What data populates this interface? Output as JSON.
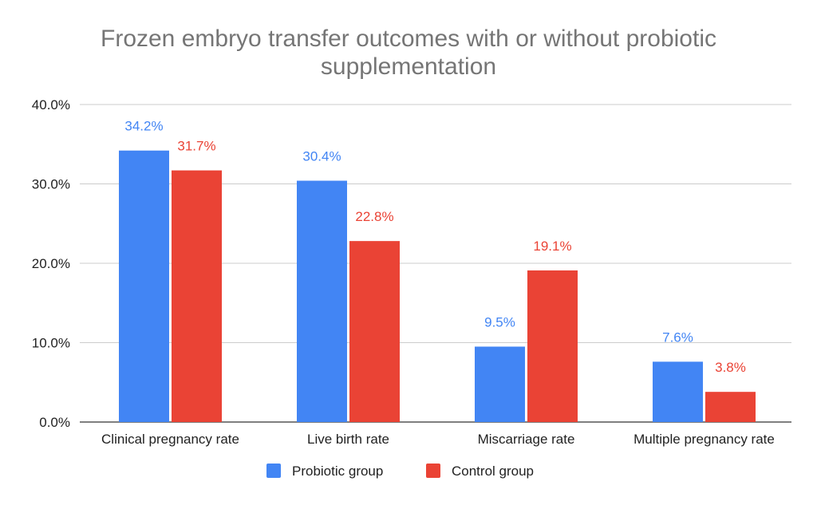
{
  "chart_data": {
    "type": "bar",
    "title_lines": [
      "Frozen embryo transfer outcomes with or without probiotic",
      "supplementation"
    ],
    "categories": [
      "Clinical pregnancy rate",
      "Live birth rate",
      "Miscarriage rate",
      "Multiple pregnancy rate"
    ],
    "series": [
      {
        "name": "Probiotic group",
        "color": "#4285f4",
        "values": [
          34.2,
          30.4,
          9.5,
          7.6
        ],
        "labels": [
          "34.2%",
          "30.4%",
          "9.5%",
          "7.6%"
        ]
      },
      {
        "name": "Control group",
        "color": "#ea4335",
        "values": [
          31.7,
          22.8,
          19.1,
          3.8
        ],
        "labels": [
          "31.7%",
          "22.8%",
          "19.1%",
          "3.8%"
        ]
      }
    ],
    "y_ticks": [
      0,
      10,
      20,
      30,
      40
    ],
    "y_tick_labels": [
      "0.0%",
      "10.0%",
      "20.0%",
      "30.0%",
      "40.0%"
    ],
    "ylim": [
      0,
      40
    ],
    "grid": true,
    "legend_position": "bottom"
  }
}
